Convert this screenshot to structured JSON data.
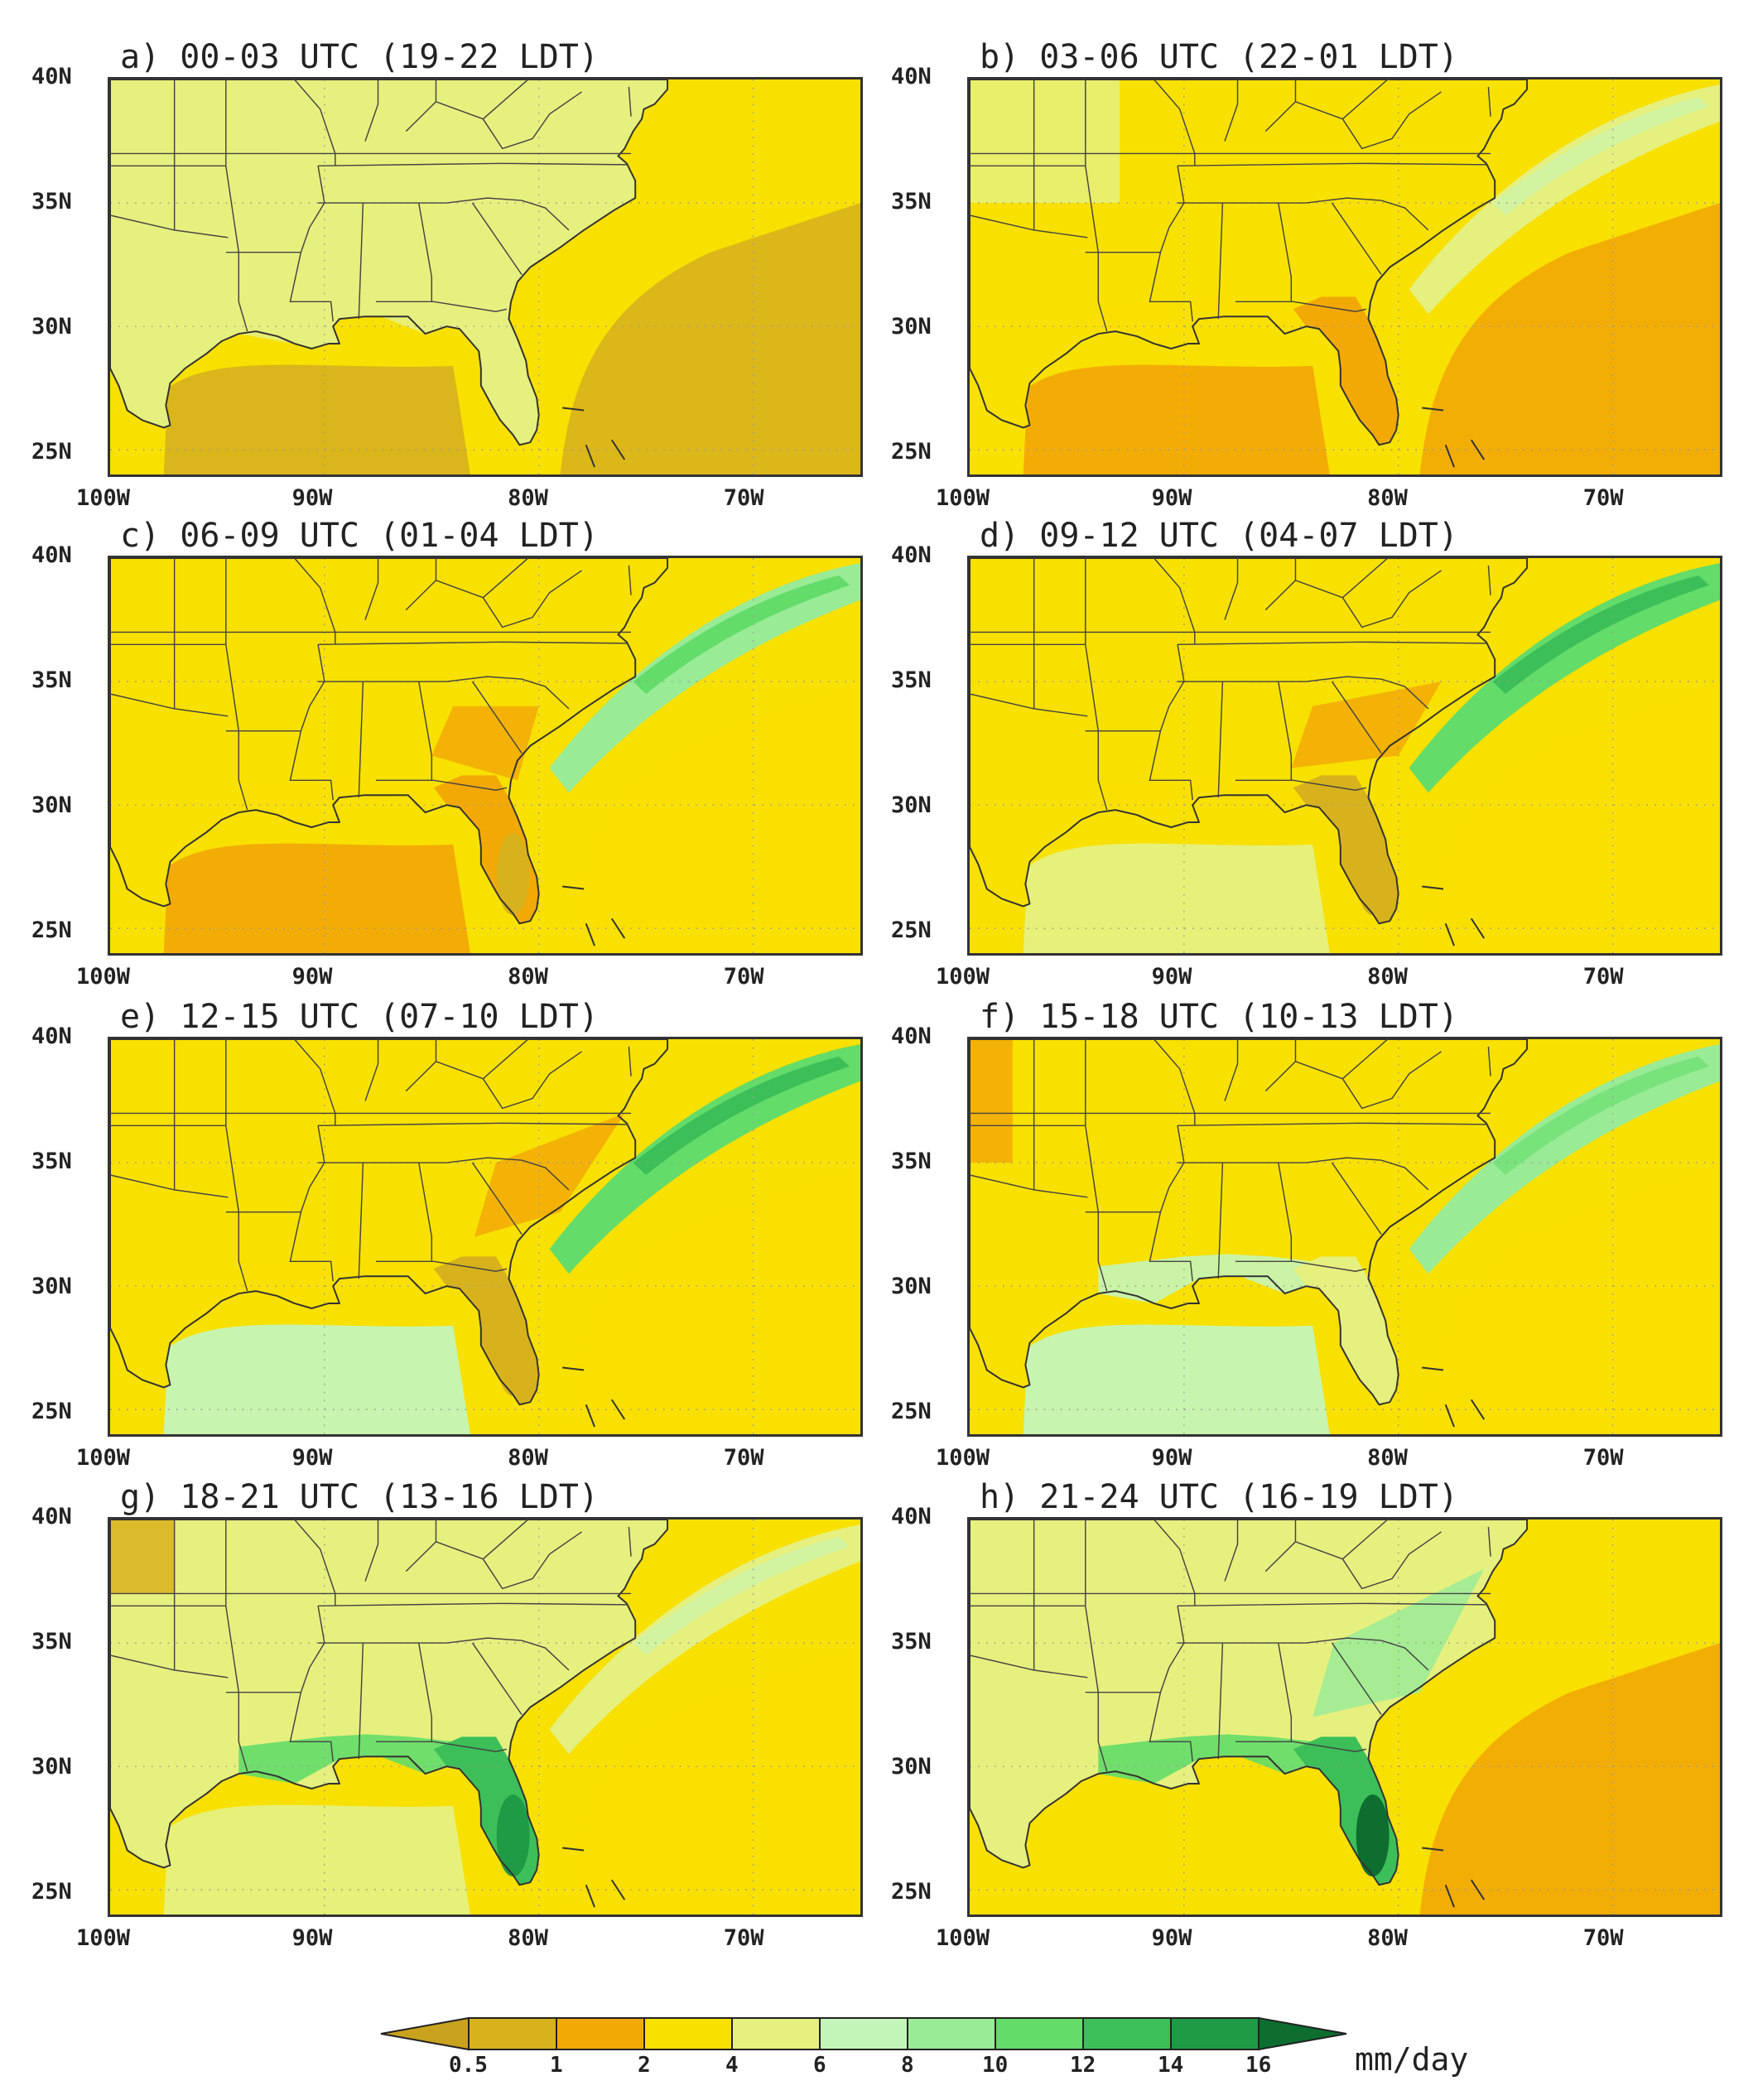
{
  "figure": {
    "panels": [
      {
        "id": "a",
        "title": "a) 00-03 UTC (19-22 LDT)",
        "phase": 0
      },
      {
        "id": "b",
        "title": "b) 03-06 UTC (22-01 LDT)",
        "phase": 1
      },
      {
        "id": "c",
        "title": "c) 06-09 UTC (01-04 LDT)",
        "phase": 2
      },
      {
        "id": "d",
        "title": "d) 09-12 UTC (04-07 LDT)",
        "phase": 3
      },
      {
        "id": "e",
        "title": "e) 12-15 UTC (07-10 LDT)",
        "phase": 4
      },
      {
        "id": "f",
        "title": "f) 15-18 UTC (10-13 LDT)",
        "phase": 5
      },
      {
        "id": "g",
        "title": "g) 18-21 UTC (13-16 LDT)",
        "phase": 6
      },
      {
        "id": "h",
        "title": "h) 21-24 UTC (16-19 LDT)",
        "phase": 7
      }
    ],
    "lat_ticks": [
      "40N",
      "35N",
      "30N",
      "25N"
    ],
    "lon_ticks": [
      "100W",
      "90W",
      "80W",
      "70W"
    ],
    "map_extent": {
      "lon_min": -100,
      "lon_max": -65,
      "lat_min": 24,
      "lat_max": 40
    },
    "colorbar": {
      "levels": [
        "0.5",
        "1",
        "2",
        "4",
        "6",
        "8",
        "10",
        "12",
        "14",
        "16"
      ],
      "units": "mm/day",
      "colors": [
        "#c9a21e",
        "#d8b21c",
        "#f2a906",
        "#f8e000",
        "#e6f07e",
        "#c4f5b8",
        "#99eb96",
        "#63dc69",
        "#3cbf58",
        "#1f9a45",
        "#0d6e2f"
      ]
    }
  }
}
